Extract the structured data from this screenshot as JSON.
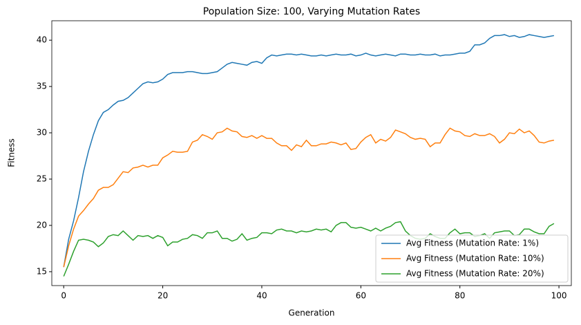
{
  "chart_data": {
    "type": "line",
    "title": "Population Size: 100, Varying Mutation Rates",
    "x_label": "Generation",
    "y_label": "Fitness",
    "x": [
      0,
      1,
      2,
      3,
      4,
      5,
      6,
      7,
      8,
      9,
      10,
      11,
      12,
      13,
      14,
      15,
      16,
      17,
      18,
      19,
      20,
      21,
      22,
      23,
      24,
      25,
      26,
      27,
      28,
      29,
      30,
      31,
      32,
      33,
      34,
      35,
      36,
      37,
      38,
      39,
      40,
      41,
      42,
      43,
      44,
      45,
      46,
      47,
      48,
      49,
      50,
      51,
      52,
      53,
      54,
      55,
      56,
      57,
      58,
      59,
      60,
      61,
      62,
      63,
      64,
      65,
      66,
      67,
      68,
      69,
      70,
      71,
      72,
      73,
      74,
      75,
      76,
      77,
      78,
      79,
      80,
      81,
      82,
      83,
      84,
      85,
      86,
      87,
      88,
      89,
      90,
      91,
      92,
      93,
      94,
      95,
      96,
      97,
      98,
      99
    ],
    "series": [
      {
        "name": "Avg Fitness (Mutation Rate: 1%)",
        "color": "#1f77b4",
        "values": [
          15.5,
          18.5,
          20.5,
          23,
          25.8,
          28,
          29.8,
          31.3,
          32.2,
          32.5,
          33,
          33.4,
          33.5,
          33.8,
          34.3,
          34.8,
          35.3,
          35.5,
          35.4,
          35.5,
          35.8,
          36.3,
          36.5,
          36.5,
          36.5,
          36.6,
          36.6,
          36.5,
          36.4,
          36.4,
          36.5,
          36.6,
          37,
          37.4,
          37.6,
          37.5,
          37.4,
          37.3,
          37.6,
          37.7,
          37.5,
          38.1,
          38.4,
          38.3,
          38.4,
          38.5,
          38.5,
          38.4,
          38.5,
          38.4,
          38.3,
          38.3,
          38.4,
          38.3,
          38.4,
          38.5,
          38.4,
          38.4,
          38.5,
          38.3,
          38.4,
          38.6,
          38.4,
          38.3,
          38.4,
          38.5,
          38.4,
          38.3,
          38.5,
          38.5,
          38.4,
          38.4,
          38.5,
          38.4,
          38.4,
          38.5,
          38.3,
          38.4,
          38.4,
          38.5,
          38.6,
          38.6,
          38.8,
          39.5,
          39.5,
          39.7,
          40.2,
          40.5,
          40.5,
          40.6,
          40.4,
          40.5,
          40.3,
          40.4,
          40.6,
          40.5,
          40.4,
          40.3,
          40.4,
          40.5
        ]
      },
      {
        "name": "Avg Fitness (Mutation Rate: 10%)",
        "color": "#ff7f0e",
        "values": [
          15.5,
          17.8,
          19.6,
          21,
          21.6,
          22.3,
          22.9,
          23.8,
          24.1,
          24.1,
          24.4,
          25.1,
          25.8,
          25.7,
          26.2,
          26.3,
          26.5,
          26.3,
          26.5,
          26.5,
          27.3,
          27.6,
          28,
          27.9,
          27.9,
          28,
          29,
          29.2,
          29.8,
          29.6,
          29.3,
          30,
          30.1,
          30.5,
          30.2,
          30.1,
          29.6,
          29.5,
          29.7,
          29.4,
          29.7,
          29.4,
          29.4,
          28.9,
          28.6,
          28.6,
          28.1,
          28.7,
          28.5,
          29.2,
          28.6,
          28.6,
          28.8,
          28.8,
          29,
          28.9,
          28.7,
          28.9,
          28.2,
          28.3,
          29,
          29.5,
          29.8,
          28.9,
          29.3,
          29.1,
          29.5,
          30.3,
          30.1,
          29.9,
          29.5,
          29.3,
          29.4,
          29.3,
          28.5,
          28.9,
          28.9,
          29.8,
          30.5,
          30.2,
          30.1,
          29.7,
          29.6,
          29.9,
          29.7,
          29.7,
          29.9,
          29.6,
          28.9,
          29.3,
          30,
          29.9,
          30.4,
          30,
          30.2,
          29.7,
          29,
          28.9,
          29.1,
          29.2
        ]
      },
      {
        "name": "Avg Fitness (Mutation Rate: 20%)",
        "color": "#2ca02c",
        "values": [
          14.5,
          15.8,
          17.2,
          18.4,
          18.5,
          18.4,
          18.2,
          17.7,
          18.1,
          18.8,
          19,
          18.9,
          19.4,
          18.9,
          18.4,
          18.9,
          18.8,
          18.9,
          18.6,
          18.9,
          18.7,
          17.8,
          18.2,
          18.2,
          18.5,
          18.6,
          19,
          18.9,
          18.6,
          19.2,
          19.2,
          19.4,
          18.6,
          18.6,
          18.3,
          18.5,
          19.1,
          18.4,
          18.6,
          18.7,
          19.2,
          19.2,
          19.1,
          19.5,
          19.6,
          19.4,
          19.4,
          19.2,
          19.4,
          19.3,
          19.4,
          19.6,
          19.5,
          19.6,
          19.3,
          20,
          20.3,
          20.3,
          19.8,
          19.7,
          19.8,
          19.6,
          19.4,
          19.7,
          19.4,
          19.7,
          19.9,
          20.3,
          20.4,
          19.4,
          18.9,
          18.6,
          18.5,
          18.6,
          19.1,
          18.8,
          18.6,
          18.6,
          19.2,
          19.6,
          19.1,
          19.2,
          19.2,
          18.8,
          18.9,
          19.1,
          18.6,
          19.2,
          19.3,
          19.4,
          19.4,
          18.9,
          19,
          19.6,
          19.6,
          19.3,
          19.1,
          19.1,
          19.9,
          20.2
        ]
      }
    ],
    "xlim": [
      -2.4,
      102.5
    ],
    "xticks": [
      0,
      20,
      40,
      60,
      80,
      100
    ],
    "ylim": [
      13.5,
      42.1
    ],
    "yticks": [
      15,
      20,
      25,
      30,
      35,
      40
    ],
    "grid": false,
    "legend": "lower right"
  }
}
